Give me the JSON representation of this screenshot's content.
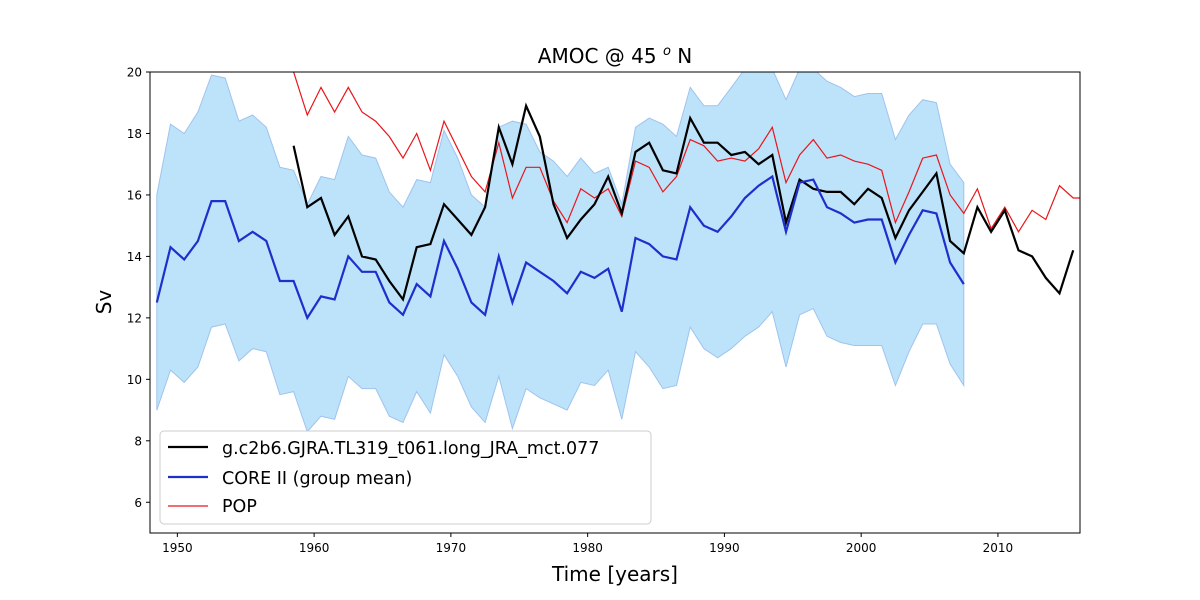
{
  "chart_data": {
    "type": "line",
    "title": "AMOC @ 45 ",
    "title_sup": "o",
    "title_suffix": " N",
    "xlabel": "Time [years]",
    "ylabel": "Sv",
    "xlim": [
      1948,
      2016
    ],
    "ylim": [
      5,
      20
    ],
    "xticks": [
      1950,
      1960,
      1970,
      1980,
      1990,
      2000,
      2010
    ],
    "yticks": [
      6,
      8,
      10,
      12,
      14,
      16,
      18,
      20
    ],
    "grid": false,
    "legend_position": "lower-left",
    "band": {
      "color": "#bde3fa",
      "edge_color": "#9ec3ee",
      "x": [
        1948.5,
        1949.5,
        1950.5,
        1951.5,
        1952.5,
        1953.5,
        1954.5,
        1955.5,
        1956.5,
        1957.5,
        1958.5,
        1959.5,
        1960.5,
        1961.5,
        1962.5,
        1963.5,
        1964.5,
        1965.5,
        1966.5,
        1967.5,
        1968.5,
        1969.5,
        1970.5,
        1971.5,
        1972.5,
        1973.5,
        1974.5,
        1975.5,
        1976.5,
        1977.5,
        1978.5,
        1979.5,
        1980.5,
        1981.5,
        1982.5,
        1983.5,
        1984.5,
        1985.5,
        1986.5,
        1987.5,
        1988.5,
        1989.5,
        1990.5,
        1991.5,
        1992.5,
        1993.5,
        1994.5,
        1995.5,
        1996.5,
        1997.5,
        1998.5,
        1999.5,
        2000.5,
        2001.5,
        2002.5,
        2003.5,
        2004.5,
        2005.5,
        2006.5,
        2007.5
      ],
      "upper": [
        16.0,
        18.3,
        18.0,
        18.7,
        19.9,
        19.8,
        18.4,
        18.6,
        18.2,
        16.9,
        16.8,
        15.7,
        16.6,
        16.5,
        17.9,
        17.3,
        17.2,
        16.1,
        15.6,
        16.5,
        16.4,
        18.1,
        17.2,
        16.0,
        15.6,
        18.2,
        18.4,
        18.3,
        17.4,
        17.1,
        16.6,
        17.2,
        16.7,
        16.9,
        15.7,
        18.2,
        18.5,
        18.3,
        17.9,
        19.5,
        18.9,
        18.9,
        19.5,
        20.1,
        20.1,
        20.1,
        19.1,
        20.1,
        20.1,
        19.7,
        19.5,
        19.2,
        19.3,
        19.3,
        17.8,
        18.6,
        19.1,
        19.0,
        17.0,
        16.4
      ],
      "lower": [
        9.0,
        10.3,
        9.9,
        10.4,
        11.7,
        11.8,
        10.6,
        11.0,
        10.9,
        9.5,
        9.6,
        8.3,
        8.8,
        8.7,
        10.1,
        9.7,
        9.7,
        8.8,
        8.6,
        9.6,
        8.9,
        10.8,
        10.1,
        9.1,
        8.6,
        10.1,
        8.4,
        9.7,
        9.4,
        9.2,
        9.0,
        9.9,
        9.8,
        10.3,
        8.7,
        10.9,
        10.4,
        9.7,
        9.8,
        11.7,
        11.0,
        10.7,
        11.0,
        11.4,
        11.7,
        12.2,
        10.4,
        12.1,
        12.3,
        11.4,
        11.2,
        11.1,
        11.1,
        11.1,
        9.8,
        10.9,
        11.8,
        11.8,
        10.5,
        9.8
      ]
    },
    "series": [
      {
        "name": "g.c2b6.GJRA.TL319_t061.long_JRA_mct.077",
        "color": "#000000",
        "x": [
          1958.5,
          1959.5,
          1960.5,
          1961.5,
          1962.5,
          1963.5,
          1964.5,
          1965.5,
          1966.5,
          1967.5,
          1968.5,
          1969.5,
          1970.5,
          1971.5,
          1972.5,
          1973.5,
          1974.5,
          1975.5,
          1976.5,
          1977.5,
          1978.5,
          1979.5,
          1980.5,
          1981.5,
          1982.5,
          1983.5,
          1984.5,
          1985.5,
          1986.5,
          1987.5,
          1988.5,
          1989.5,
          1990.5,
          1991.5,
          1992.5,
          1993.5,
          1994.5,
          1995.5,
          1996.5,
          1997.5,
          1998.5,
          1999.5,
          2000.5,
          2001.5,
          2002.5,
          2003.5,
          2004.5,
          2005.5,
          2006.5,
          2007.5,
          2008.5,
          2009.5,
          2010.5,
          2011.5,
          2012.5,
          2013.5,
          2014.5,
          2015.5
        ],
        "values": [
          17.6,
          15.6,
          15.9,
          14.7,
          15.3,
          14.0,
          13.9,
          13.2,
          12.6,
          14.3,
          14.4,
          15.7,
          15.2,
          14.7,
          15.6,
          18.2,
          17.0,
          18.9,
          17.9,
          15.7,
          14.6,
          15.2,
          15.7,
          16.6,
          15.4,
          17.4,
          17.7,
          16.8,
          16.7,
          18.5,
          17.7,
          17.7,
          17.3,
          17.4,
          17.0,
          17.3,
          15.1,
          16.5,
          16.2,
          16.1,
          16.1,
          15.7,
          16.2,
          15.9,
          14.6,
          15.5,
          16.1,
          16.7,
          14.5,
          14.1,
          15.6,
          14.8,
          15.5,
          14.2,
          14.0,
          13.3,
          12.8,
          14.2
        ],
        "linewidth": 2.2
      },
      {
        "name": "CORE II (group mean)",
        "color": "#1f2fcc",
        "x": [
          1948.5,
          1949.5,
          1950.5,
          1951.5,
          1952.5,
          1953.5,
          1954.5,
          1955.5,
          1956.5,
          1957.5,
          1958.5,
          1959.5,
          1960.5,
          1961.5,
          1962.5,
          1963.5,
          1964.5,
          1965.5,
          1966.5,
          1967.5,
          1968.5,
          1969.5,
          1970.5,
          1971.5,
          1972.5,
          1973.5,
          1974.5,
          1975.5,
          1976.5,
          1977.5,
          1978.5,
          1979.5,
          1980.5,
          1981.5,
          1982.5,
          1983.5,
          1984.5,
          1985.5,
          1986.5,
          1987.5,
          1988.5,
          1989.5,
          1990.5,
          1991.5,
          1992.5,
          1993.5,
          1994.5,
          1995.5,
          1996.5,
          1997.5,
          1998.5,
          1999.5,
          2000.5,
          2001.5,
          2002.5,
          2003.5,
          2004.5,
          2005.5,
          2006.5,
          2007.5
        ],
        "values": [
          12.5,
          14.3,
          13.9,
          14.5,
          15.8,
          15.8,
          14.5,
          14.8,
          14.5,
          13.2,
          13.2,
          12.0,
          12.7,
          12.6,
          14.0,
          13.5,
          13.5,
          12.5,
          12.1,
          13.1,
          12.7,
          14.5,
          13.6,
          12.5,
          12.1,
          14.0,
          12.5,
          13.8,
          13.5,
          13.2,
          12.8,
          13.5,
          13.3,
          13.6,
          12.2,
          14.6,
          14.4,
          14.0,
          13.9,
          15.6,
          15.0,
          14.8,
          15.3,
          15.9,
          16.3,
          16.6,
          14.8,
          16.4,
          16.5,
          15.6,
          15.4,
          15.1,
          15.2,
          15.2,
          13.8,
          14.7,
          15.5,
          15.4,
          13.8,
          13.1
        ],
        "linewidth": 2.2
      },
      {
        "name": "POP",
        "color": "#e8161b",
        "x": [
          1958.5,
          1959.5,
          1960.5,
          1961.5,
          1962.5,
          1963.5,
          1964.5,
          1965.5,
          1966.5,
          1967.5,
          1968.5,
          1969.5,
          1970.5,
          1971.5,
          1972.5,
          1973.5,
          1974.5,
          1975.5,
          1976.5,
          1977.5,
          1978.5,
          1979.5,
          1980.5,
          1981.5,
          1982.5,
          1983.5,
          1984.5,
          1985.5,
          1986.5,
          1987.5,
          1988.5,
          1989.5,
          1990.5,
          1991.5,
          1992.5,
          1993.5,
          1994.5,
          1995.5,
          1996.5,
          1997.5,
          1998.5,
          1999.5,
          2000.5,
          2001.5,
          2002.5,
          2003.5,
          2004.5,
          2005.5,
          2006.5,
          2007.5,
          2008.5,
          2009.5,
          2010.5,
          2011.5,
          2012.5,
          2013.5,
          2014.5,
          2015.5,
          2016.0
        ],
        "values": [
          20.0,
          18.6,
          19.5,
          18.7,
          19.5,
          18.7,
          18.4,
          17.9,
          17.2,
          18.0,
          16.8,
          18.4,
          17.5,
          16.6,
          16.1,
          17.7,
          15.9,
          16.9,
          16.9,
          15.8,
          15.1,
          16.2,
          15.9,
          16.2,
          15.3,
          17.1,
          16.9,
          16.1,
          16.6,
          17.8,
          17.6,
          17.1,
          17.2,
          17.1,
          17.5,
          18.2,
          16.4,
          17.3,
          17.8,
          17.2,
          17.3,
          17.1,
          17.0,
          16.8,
          15.1,
          16.1,
          17.2,
          17.3,
          16.0,
          15.4,
          16.2,
          14.9,
          15.6,
          14.8,
          15.5,
          15.2,
          16.3,
          15.9,
          15.9
        ],
        "linewidth": 1.2
      }
    ]
  }
}
